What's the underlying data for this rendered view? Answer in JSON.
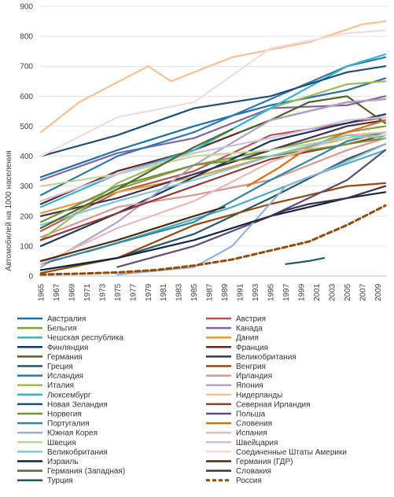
{
  "chart_data": {
    "type": "line",
    "title": "",
    "xlabel": "",
    "ylabel": "Автомобилей на 1000 населения",
    "ylim": [
      0,
      900
    ],
    "yticks": [
      0,
      100,
      200,
      300,
      400,
      500,
      600,
      700,
      800,
      900
    ],
    "xticks": [
      1965,
      1967,
      1969,
      1971,
      1973,
      1975,
      1977,
      1979,
      1981,
      1983,
      1985,
      1987,
      1989,
      1991,
      1993,
      1995,
      1997,
      1999,
      2001,
      2003,
      2005,
      2007,
      2009
    ],
    "xlim": [
      1965,
      2010
    ],
    "grid": "horizontal",
    "legend_position": "bottom",
    "series": [
      {
        "name": "Австралия",
        "color": "#1f6fa8",
        "points": [
          [
            1965,
            330
          ],
          [
            1975,
            420
          ],
          [
            1985,
            500
          ],
          [
            1995,
            570
          ],
          [
            2005,
            620
          ],
          [
            2010,
            660
          ]
        ]
      },
      {
        "name": "Австрия",
        "color": "#c0504d",
        "points": [
          [
            1965,
            150
          ],
          [
            1975,
            280
          ],
          [
            1985,
            350
          ],
          [
            1995,
            470
          ],
          [
            2005,
            510
          ],
          [
            2010,
            530
          ]
        ]
      },
      {
        "name": "Бельгия",
        "color": "#7fa03c",
        "points": [
          [
            1965,
            160
          ],
          [
            1975,
            290
          ],
          [
            1985,
            370
          ],
          [
            1995,
            420
          ],
          [
            2005,
            480
          ],
          [
            2010,
            500
          ]
        ]
      },
      {
        "name": "Канада",
        "color": "#8064a2",
        "points": [
          [
            1965,
            320
          ],
          [
            1975,
            410
          ],
          [
            1985,
            460
          ],
          [
            1995,
            560
          ],
          [
            2005,
            570
          ],
          [
            2010,
            600
          ]
        ]
      },
      {
        "name": "Чешская республика",
        "color": "#4bacc6",
        "points": [
          [
            1971,
            80
          ],
          [
            1980,
            150
          ],
          [
            1990,
            230
          ],
          [
            2000,
            330
          ],
          [
            2010,
            420
          ]
        ]
      },
      {
        "name": "Дания",
        "color": "#e69a36",
        "points": [
          [
            1965,
            210
          ],
          [
            1975,
            280
          ],
          [
            1985,
            330
          ],
          [
            1995,
            400
          ],
          [
            2005,
            460
          ],
          [
            2010,
            480
          ]
        ]
      },
      {
        "name": "Финляндия",
        "color": "#17375e",
        "points": [
          [
            1965,
            100
          ],
          [
            1975,
            210
          ],
          [
            1985,
            330
          ],
          [
            1995,
            450
          ],
          [
            2005,
            510
          ],
          [
            2010,
            540
          ]
        ]
      },
      {
        "name": "Франция",
        "color": "#632523",
        "points": [
          [
            1965,
            240
          ],
          [
            1975,
            350
          ],
          [
            1985,
            420
          ],
          [
            1995,
            520
          ],
          [
            2005,
            580
          ],
          [
            2010,
            590
          ]
        ]
      },
      {
        "name": "Германия",
        "color": "#4f6228",
        "points": [
          [
            1991,
            480
          ],
          [
            1995,
            520
          ],
          [
            2000,
            580
          ],
          [
            2005,
            600
          ],
          [
            2010,
            510
          ]
        ]
      },
      {
        "name": "Великобритания",
        "color": "#3f3151",
        "points": [
          [
            1965,
            200
          ],
          [
            1975,
            260
          ],
          [
            1985,
            340
          ],
          [
            1995,
            420
          ],
          [
            2005,
            500
          ],
          [
            2010,
            520
          ]
        ]
      },
      {
        "name": "Греция",
        "color": "#215967",
        "points": [
          [
            1965,
            20
          ],
          [
            1975,
            60
          ],
          [
            1985,
            140
          ],
          [
            1995,
            260
          ],
          [
            2005,
            390
          ],
          [
            2010,
            440
          ]
        ]
      },
      {
        "name": "Венгрия",
        "color": "#974706",
        "points": [
          [
            1965,
            10
          ],
          [
            1975,
            60
          ],
          [
            1985,
            170
          ],
          [
            1995,
            240
          ],
          [
            2005,
            300
          ],
          [
            2010,
            310
          ]
        ]
      },
      {
        "name": "Исландия",
        "color": "#2e75b6",
        "points": [
          [
            1965,
            270
          ],
          [
            1975,
            400
          ],
          [
            1985,
            480
          ],
          [
            1995,
            590
          ],
          [
            2005,
            700
          ],
          [
            2010,
            730
          ]
        ]
      },
      {
        "name": "Ирландия",
        "color": "#d99694",
        "points": [
          [
            1965,
            130
          ],
          [
            1975,
            230
          ],
          [
            1985,
            270
          ],
          [
            1995,
            320
          ],
          [
            2005,
            420
          ],
          [
            2010,
            460
          ]
        ]
      },
      {
        "name": "Италия",
        "color": "#9bbb59",
        "points": [
          [
            1965,
            120
          ],
          [
            1975,
            310
          ],
          [
            1985,
            420
          ],
          [
            1995,
            560
          ],
          [
            2005,
            640
          ],
          [
            2010,
            650
          ]
        ]
      },
      {
        "name": "Япония",
        "color": "#b3a2c7",
        "points": [
          [
            1965,
            30
          ],
          [
            1975,
            180
          ],
          [
            1985,
            370
          ],
          [
            1995,
            520
          ],
          [
            2005,
            580
          ],
          [
            2010,
            590
          ]
        ]
      },
      {
        "name": "Люксембург",
        "color": "#31b7c9",
        "points": [
          [
            1965,
            230
          ],
          [
            1975,
            340
          ],
          [
            1985,
            420
          ],
          [
            1995,
            560
          ],
          [
            2005,
            700
          ],
          [
            2010,
            740
          ]
        ]
      },
      {
        "name": "Нидерланды",
        "color": "#fac090",
        "points": [
          [
            1965,
            480
          ],
          [
            1970,
            580
          ],
          [
            1979,
            700
          ],
          [
            1982,
            650
          ],
          [
            1990,
            730
          ],
          [
            2000,
            780
          ],
          [
            2007,
            840
          ],
          [
            2010,
            850
          ]
        ]
      },
      {
        "name": "Новая Зеландия",
        "color": "#1f4e79",
        "points": [
          [
            1965,
            400
          ],
          [
            1975,
            470
          ],
          [
            1985,
            560
          ],
          [
            1995,
            600
          ],
          [
            2005,
            680
          ],
          [
            2010,
            700
          ]
        ]
      },
      {
        "name": "Северная Ирландия",
        "color": "#953735",
        "points": [
          [
            1965,
            120
          ],
          [
            1975,
            210
          ],
          [
            1985,
            300
          ],
          [
            1995,
            390
          ],
          [
            2005,
            440
          ],
          [
            2010,
            470
          ]
        ]
      },
      {
        "name": "Норвегия",
        "color": "#77933c",
        "points": [
          [
            1965,
            180
          ],
          [
            1975,
            300
          ],
          [
            1985,
            370
          ],
          [
            1995,
            400
          ],
          [
            2005,
            440
          ],
          [
            2010,
            460
          ]
        ]
      },
      {
        "name": "Польша",
        "color": "#604a7b",
        "points": [
          [
            1975,
            30
          ],
          [
            1985,
            100
          ],
          [
            1995,
            200
          ],
          [
            2005,
            320
          ],
          [
            2010,
            420
          ]
        ]
      },
      {
        "name": "Португалия",
        "color": "#31859c",
        "points": [
          [
            1965,
            40
          ],
          [
            1975,
            110
          ],
          [
            1985,
            180
          ],
          [
            1995,
            320
          ],
          [
            2005,
            450
          ],
          [
            2010,
            480
          ]
        ]
      },
      {
        "name": "Словения",
        "color": "#e46c0a",
        "points": [
          [
            1992,
            300
          ],
          [
            1996,
            360
          ],
          [
            2000,
            430
          ],
          [
            2005,
            480
          ],
          [
            2010,
            520
          ]
        ]
      },
      {
        "name": "Южная Корея",
        "color": "#95b3d7",
        "points": [
          [
            1975,
            5
          ],
          [
            1985,
            30
          ],
          [
            1990,
            100
          ],
          [
            1997,
            300
          ],
          [
            2003,
            360
          ],
          [
            2010,
            440
          ]
        ]
      },
      {
        "name": "Испания",
        "color": "#e6b9b8",
        "points": [
          [
            1965,
            40
          ],
          [
            1975,
            160
          ],
          [
            1985,
            250
          ],
          [
            1995,
            380
          ],
          [
            2005,
            470
          ],
          [
            2010,
            480
          ]
        ]
      },
      {
        "name": "Швеция",
        "color": "#c3d69b",
        "points": [
          [
            1965,
            300
          ],
          [
            1975,
            340
          ],
          [
            1985,
            400
          ],
          [
            1995,
            420
          ],
          [
            2005,
            460
          ],
          [
            2010,
            470
          ]
        ]
      },
      {
        "name": "Швейцария",
        "color": "#ccc1da",
        "points": [
          [
            1965,
            250
          ],
          [
            1975,
            340
          ],
          [
            1985,
            410
          ],
          [
            1995,
            460
          ],
          [
            2005,
            520
          ],
          [
            2010,
            530
          ]
        ]
      },
      {
        "name": "Великобритания",
        "color": "#7fc7d6",
        "points": [
          [
            1965,
            170
          ],
          [
            1975,
            250
          ],
          [
            1985,
            320
          ],
          [
            1995,
            400
          ],
          [
            2005,
            470
          ],
          [
            2010,
            460
          ]
        ]
      },
      {
        "name": "Соединенные Штаты Америки",
        "color": "#f2dcdb",
        "points": [
          [
            1965,
            400
          ],
          [
            1975,
            530
          ],
          [
            1985,
            580
          ],
          [
            1995,
            760
          ],
          [
            2005,
            810
          ],
          [
            2010,
            820
          ]
        ]
      },
      {
        "name": "Израиль",
        "color": "#0f243e",
        "points": [
          [
            1965,
            20
          ],
          [
            1975,
            60
          ],
          [
            1985,
            120
          ],
          [
            1995,
            200
          ],
          [
            2005,
            260
          ],
          [
            2010,
            280
          ]
        ]
      },
      {
        "name": "Германия (ГДР)",
        "color": "#4a2a0c",
        "points": [
          [
            1965,
            50
          ],
          [
            1975,
            120
          ],
          [
            1985,
            200
          ],
          [
            1989,
            230
          ]
        ]
      },
      {
        "name": "Германия (Западная)",
        "color": "#4e6b2a",
        "points": [
          [
            1965,
            160
          ],
          [
            1975,
            290
          ],
          [
            1985,
            430
          ],
          [
            1990,
            490
          ]
        ]
      },
      {
        "name": "Словакия",
        "color": "#403152",
        "points": [
          [
            1993,
            180
          ],
          [
            1997,
            220
          ],
          [
            2000,
            240
          ],
          [
            2005,
            260
          ],
          [
            2010,
            300
          ]
        ]
      },
      {
        "name": "Турция",
        "color": "#205867",
        "points": [
          [
            1997,
            40
          ],
          [
            2000,
            50
          ],
          [
            2002,
            60
          ]
        ]
      },
      {
        "name": "Россия",
        "color": "#984807",
        "dashed": true,
        "points": [
          [
            1965,
            5
          ],
          [
            1970,
            8
          ],
          [
            1975,
            12
          ],
          [
            1980,
            20
          ],
          [
            1985,
            35
          ],
          [
            1990,
            55
          ],
          [
            1995,
            85
          ],
          [
            2000,
            115
          ],
          [
            2005,
            170
          ],
          [
            2010,
            235
          ]
        ]
      }
    ]
  }
}
